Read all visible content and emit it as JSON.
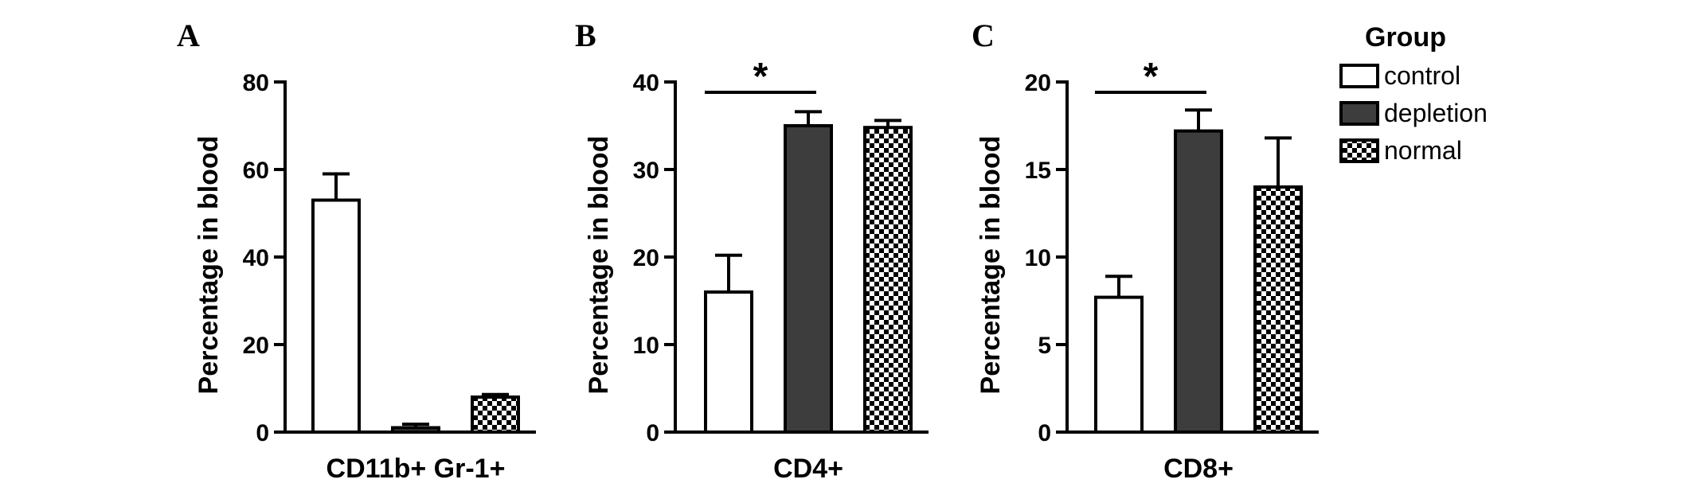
{
  "colors": {
    "control": "#ffffff",
    "depletion": "#3d3d3d",
    "normal_pattern": "checkerboard",
    "stroke": "#000000"
  },
  "legend": {
    "title": "Group",
    "entries": [
      {
        "key": "control",
        "label": "control"
      },
      {
        "key": "depletion",
        "label": "depletion"
      },
      {
        "key": "normal",
        "label": "normal"
      }
    ]
  },
  "chart_data": [
    {
      "type": "bar",
      "panel": "A",
      "ylabel": "Percentage in blood",
      "xlabel": "CD11b+ Gr-1+",
      "ylim": [
        0,
        80
      ],
      "yticks": [
        0,
        20,
        40,
        60,
        80
      ],
      "categories": [
        "control",
        "depletion",
        "normal"
      ],
      "values": [
        53,
        1,
        8
      ],
      "errors": [
        6,
        0.8,
        0.6
      ],
      "significance": []
    },
    {
      "type": "bar",
      "panel": "B",
      "ylabel": "Percentage in blood",
      "xlabel": "CD4+",
      "ylim": [
        0,
        40
      ],
      "yticks": [
        0,
        10,
        20,
        30,
        40
      ],
      "categories": [
        "control",
        "depletion",
        "normal"
      ],
      "values": [
        16,
        35,
        34.8
      ],
      "errors": [
        4.2,
        1.6,
        0.8
      ],
      "significance": [
        {
          "from": 0,
          "to": 1,
          "label": "*"
        }
      ]
    },
    {
      "type": "bar",
      "panel": "C",
      "ylabel": "Percentage in blood",
      "xlabel": "CD8+",
      "ylim": [
        0,
        20
      ],
      "yticks": [
        0,
        5,
        10,
        15,
        20
      ],
      "categories": [
        "control",
        "depletion",
        "normal"
      ],
      "values": [
        7.7,
        17.2,
        14
      ],
      "errors": [
        1.2,
        1.2,
        2.8
      ],
      "significance": [
        {
          "from": 0,
          "to": 1,
          "label": "*"
        }
      ]
    }
  ]
}
